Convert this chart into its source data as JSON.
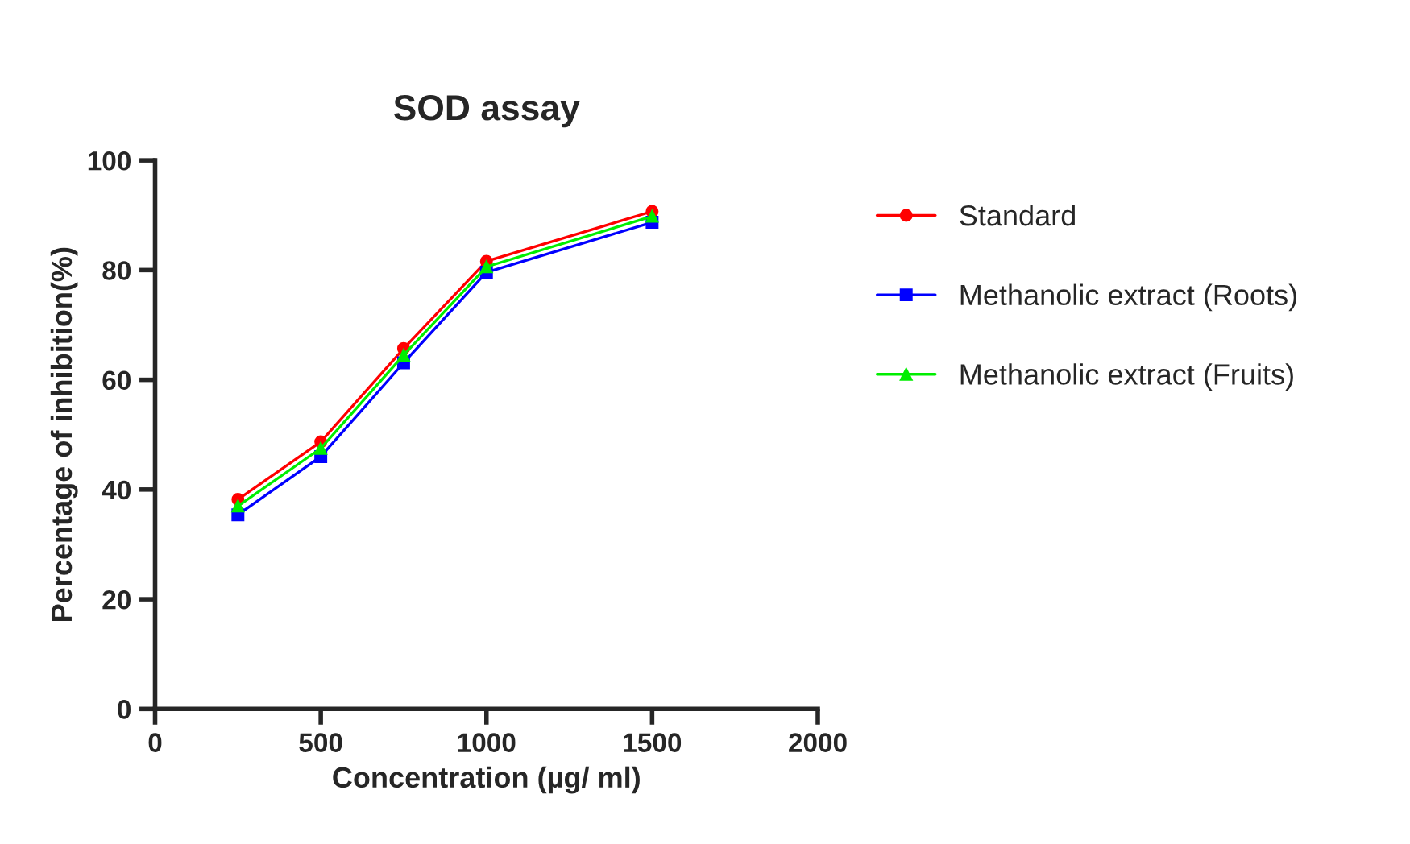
{
  "chart_data": {
    "type": "line",
    "title": "SOD assay",
    "xlabel": "Concentration (µg/ ml)",
    "ylabel": "Percentage of inhibition(%)",
    "x": [
      250,
      500,
      750,
      1000,
      1500
    ],
    "series": [
      {
        "name": "Standard",
        "color": "#ff0000",
        "marker": "circle",
        "values": [
          38.2,
          48.7,
          65.7,
          81.6,
          90.7
        ]
      },
      {
        "name": "Methanolic extract (Roots)",
        "color": "#0000ff",
        "marker": "square",
        "values": [
          35.4,
          46,
          63.1,
          79.6,
          88.7
        ]
      },
      {
        "name": "Methanolic extract (Fruits)",
        "color": "#00ee00",
        "marker": "triangle",
        "values": [
          37,
          47.5,
          64.5,
          80.6,
          89.8
        ]
      }
    ],
    "xlim": [
      0,
      2000
    ],
    "xticks": [
      0,
      500,
      1000,
      1500,
      2000
    ],
    "ylim": [
      0,
      100
    ],
    "yticks": [
      0,
      20,
      40,
      60,
      80,
      100
    ],
    "grid": false,
    "legend": "right",
    "line_style": "solid"
  }
}
